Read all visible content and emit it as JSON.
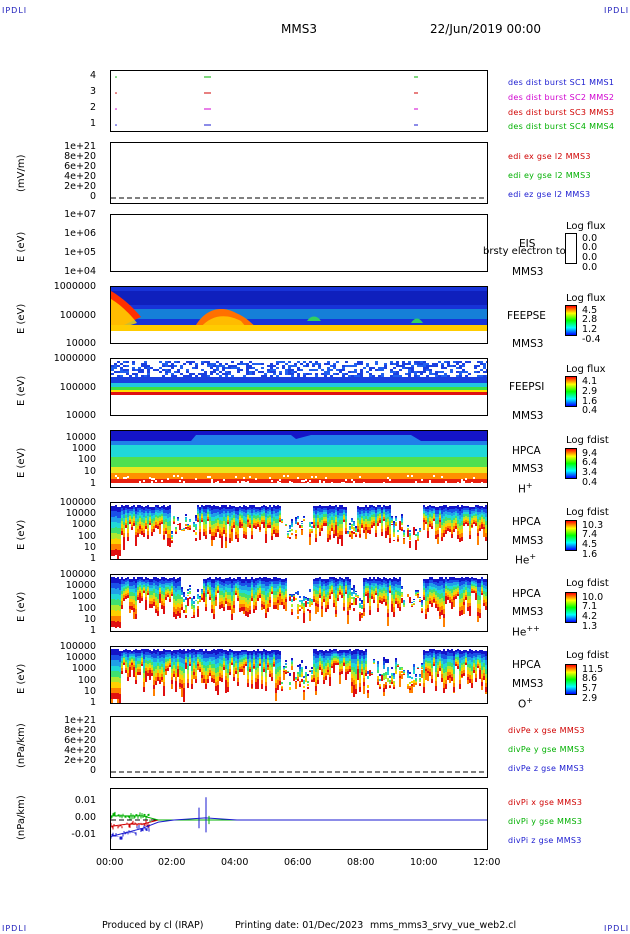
{
  "header": {
    "corner_label": "IPDLI",
    "spacecraft": "MMS3",
    "datetime": "22/Jun/2019 00:00"
  },
  "footer": {
    "producer": "Produced by cl (IRAP)",
    "printing": "Printing date: 01/Dec/2023",
    "script": "mms_mms3_srvy_vue_web2.cl"
  },
  "xaxis": {
    "ticks": [
      "00:00",
      "02:00",
      "04:00",
      "06:00",
      "08:00",
      "10:00",
      "12:00"
    ]
  },
  "panels": {
    "burst": {
      "ticks": [
        "4",
        "3",
        "2",
        "1"
      ],
      "legend": [
        {
          "text": "des dist burst SC1 MMS1",
          "color": "#1a1ad0"
        },
        {
          "text": "des dist burst SC2 MMS2",
          "color": "#d000d0"
        },
        {
          "text": "des dist burst SC3 MMS3",
          "color": "#d00000"
        },
        {
          "text": "des dist burst SC4 MMS4",
          "color": "#00b000"
        }
      ]
    },
    "edi": {
      "ylabel": "(mV/m)",
      "ticks": [
        "1e+21",
        "8e+20",
        "6e+20",
        "4e+20",
        "2e+20",
        "0"
      ],
      "legend": [
        {
          "text": "edi ex gse l2 MMS3",
          "color": "#d00000"
        },
        {
          "text": "edi ey gse l2 MMS3",
          "color": "#00b000"
        },
        {
          "text": "edi ez gse l2 MMS3",
          "color": "#1a1ad0"
        }
      ]
    },
    "eis": {
      "ylabel": "E (eV)",
      "ticks": [
        "1e+07",
        "1e+06",
        "1e+05",
        "1e+04"
      ],
      "inst": "EIS",
      "sc": "MMS3",
      "overflow": "brsty electron to",
      "cb_title": "Log flux",
      "cb_vals": [
        "0.0",
        "0.0",
        "0.0",
        "0.0"
      ]
    },
    "feepse": {
      "ylabel": "E (eV)",
      "ticks": [
        "1000000",
        "100000",
        "10000"
      ],
      "inst": "FEEPSE",
      "sc": "MMS3",
      "cb_title": "Log flux",
      "cb_vals": [
        "4.5",
        "2.8",
        "1.2",
        "-0.4"
      ]
    },
    "feepsi": {
      "ylabel": "E (eV)",
      "ticks": [
        "1000000",
        "100000",
        "10000"
      ],
      "inst": "FEEPSI",
      "sc": "MMS3",
      "cb_title": "Log flux",
      "cb_vals": [
        "4.1",
        "2.9",
        "1.6",
        "0.4"
      ]
    },
    "hpca_h": {
      "ylabel": "E (eV)",
      "ticks": [
        "10000",
        "1000",
        "100",
        "10",
        "1"
      ],
      "inst": "HPCA",
      "sc": "MMS3",
      "species": "H",
      "charge": "+",
      "cb_title": "Log fdist",
      "cb_vals": [
        "9.4",
        "6.4",
        "3.4",
        "0.4"
      ]
    },
    "hpca_he": {
      "ylabel": "E (eV)",
      "ticks": [
        "100000",
        "10000",
        "1000",
        "100",
        "10",
        "1"
      ],
      "inst": "HPCA",
      "sc": "MMS3",
      "species": "He",
      "charge": "+",
      "cb_title": "Log fdist",
      "cb_vals": [
        "10.3",
        "7.4",
        "4.5",
        "1.6"
      ]
    },
    "hpca_hepp": {
      "ylabel": "E (eV)",
      "ticks": [
        "100000",
        "10000",
        "1000",
        "100",
        "10",
        "1"
      ],
      "inst": "HPCA",
      "sc": "MMS3",
      "species": "He",
      "charge": "++",
      "cb_title": "Log fdist",
      "cb_vals": [
        "10.0",
        "7.1",
        "4.2",
        "1.3"
      ]
    },
    "hpca_o": {
      "ylabel": "E (eV)",
      "ticks": [
        "100000",
        "10000",
        "1000",
        "100",
        "10",
        "1"
      ],
      "inst": "HPCA",
      "sc": "MMS3",
      "species": "O",
      "charge": "+",
      "cb_title": "Log fdist",
      "cb_vals": [
        "11.5",
        "8.6",
        "5.7",
        "2.9"
      ]
    },
    "divpe": {
      "ylabel": "(nPa/km)",
      "ticks": [
        "1e+21",
        "8e+20",
        "6e+20",
        "4e+20",
        "2e+20",
        "0"
      ],
      "legend": [
        {
          "text": "divPe x gse MMS3",
          "color": "#d00000"
        },
        {
          "text": "divPe y gse MMS3",
          "color": "#00b000"
        },
        {
          "text": "divPe z gse MMS3",
          "color": "#1a1ad0"
        }
      ]
    },
    "divpi": {
      "ylabel": "(nPa/km)",
      "ticks": [
        "0.01",
        "0.00",
        "-0.01"
      ],
      "legend": [
        {
          "text": "divPi x gse MMS3",
          "color": "#d00000"
        },
        {
          "text": "divPi y gse MMS3",
          "color": "#00b000"
        },
        {
          "text": "divPi z gse MMS3",
          "color": "#1a1ad0"
        }
      ]
    }
  },
  "chart_data": {
    "type": "line",
    "x_range": [
      "00:00",
      "12:00"
    ],
    "divPi": {
      "ylim": [
        -0.015,
        0.015
      ],
      "series": [
        {
          "name": "divPi x gse MMS3",
          "x": [
            "00:00",
            "00:30",
            "01:00",
            "01:30",
            "02:00",
            "03:00",
            "04:00",
            "06:00",
            "08:00",
            "10:00",
            "12:00"
          ],
          "values": [
            -0.003,
            -0.002,
            -0.002,
            0.0,
            0.0,
            0.0,
            0.0,
            0.0,
            0.0,
            0.0,
            0.0
          ]
        },
        {
          "name": "divPi y gse MMS3",
          "x": [
            "00:00",
            "00:30",
            "01:00",
            "01:30",
            "02:00",
            "03:00",
            "04:00",
            "06:00",
            "08:00",
            "10:00",
            "12:00"
          ],
          "values": [
            0.002,
            0.002,
            0.002,
            0.0,
            0.0,
            0.0,
            0.0,
            0.0,
            0.0,
            0.0,
            0.0
          ]
        },
        {
          "name": "divPi z gse MMS3",
          "x": [
            "00:00",
            "00:30",
            "01:00",
            "01:30",
            "02:00",
            "03:00",
            "04:00",
            "06:00",
            "08:00",
            "10:00",
            "12:00"
          ],
          "values": [
            -0.008,
            -0.006,
            -0.004,
            -0.001,
            0.0,
            0.001,
            0.0,
            0.0,
            0.0,
            0.0,
            0.0
          ]
        }
      ]
    }
  }
}
